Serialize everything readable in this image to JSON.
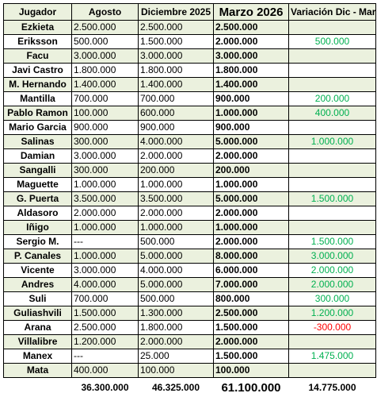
{
  "headers": {
    "player": "Jugador",
    "august": "Agosto",
    "december": "Diciembre 2025",
    "march": "Marzo 2026",
    "variation": "Variación Dic - Mar"
  },
  "rows": [
    {
      "player": "Ezkieta",
      "august": "2.500.000",
      "december": "2.500.000",
      "march": "2.500.000",
      "variation": "",
      "var_sign": ""
    },
    {
      "player": "Eriksson",
      "august": "500.000",
      "december": "1.500.000",
      "march": "2.000.000",
      "variation": "500.000",
      "var_sign": "pos"
    },
    {
      "player": "Facu",
      "august": "3.000.000",
      "december": "3.000.000",
      "march": "3.000.000",
      "variation": "",
      "var_sign": ""
    },
    {
      "player": "Javi Castro",
      "august": "1.800.000",
      "december": "1.800.000",
      "march": "1.800.000",
      "variation": "",
      "var_sign": ""
    },
    {
      "player": "M. Hernando",
      "august": "1.400.000",
      "december": "1.400.000",
      "march": "1.400.000",
      "variation": "",
      "var_sign": ""
    },
    {
      "player": "Mantilla",
      "august": "700.000",
      "december": "700.000",
      "march": "900.000",
      "variation": "200.000",
      "var_sign": "pos"
    },
    {
      "player": "Pablo Ramon",
      "august": "100.000",
      "december": "600.000",
      "march": "1.000.000",
      "variation": "400.000",
      "var_sign": "pos"
    },
    {
      "player": "Mario Garcia",
      "august": "900.000",
      "december": "900.000",
      "march": "900.000",
      "variation": "",
      "var_sign": ""
    },
    {
      "player": "Salinas",
      "august": "300.000",
      "december": "4.000.000",
      "march": "5.000.000",
      "variation": "1.000.000",
      "var_sign": "pos"
    },
    {
      "player": "Damian",
      "august": "3.000.000",
      "december": "2.000.000",
      "march": "2.000.000",
      "variation": "",
      "var_sign": ""
    },
    {
      "player": "Sangalli",
      "august": "300.000",
      "december": "200.000",
      "march": "200.000",
      "variation": "",
      "var_sign": ""
    },
    {
      "player": "Maguette",
      "august": "1.000.000",
      "december": "1.000.000",
      "march": "1.000.000",
      "variation": "",
      "var_sign": ""
    },
    {
      "player": "G. Puerta",
      "august": "3.500.000",
      "december": "3.500.000",
      "march": "5.000.000",
      "variation": "1.500.000",
      "var_sign": "pos"
    },
    {
      "player": "Aldasoro",
      "august": "2.000.000",
      "december": "2.000.000",
      "march": "2.000.000",
      "variation": "",
      "var_sign": ""
    },
    {
      "player": "Iñigo",
      "august": "1.000.000",
      "december": "1.000.000",
      "march": "1.000.000",
      "variation": "",
      "var_sign": ""
    },
    {
      "player": "Sergio M.",
      "august": "---",
      "december": "500.000",
      "march": "2.000.000",
      "variation": "1.500.000",
      "var_sign": "pos"
    },
    {
      "player": "P. Canales",
      "august": "1.000.000",
      "december": "5.000.000",
      "march": "8.000.000",
      "variation": "3.000.000",
      "var_sign": "pos"
    },
    {
      "player": "Vicente",
      "august": "3.000.000",
      "december": "4.000.000",
      "march": "6.000.000",
      "variation": "2.000.000",
      "var_sign": "pos"
    },
    {
      "player": "Andres",
      "august": "4.000.000",
      "december": "5.000.000",
      "march": "7.000.000",
      "variation": "2.000.000",
      "var_sign": "pos"
    },
    {
      "player": "Suli",
      "august": "700.000",
      "december": "500.000",
      "march": "800.000",
      "variation": "300.000",
      "var_sign": "pos"
    },
    {
      "player": "Guliashvili",
      "august": "1.500.000",
      "december": "1.300.000",
      "march": "2.500.000",
      "variation": "1.200.000",
      "var_sign": "pos"
    },
    {
      "player": "Arana",
      "august": "2.500.000",
      "december": "1.800.000",
      "march": "1.500.000",
      "variation": "-300.000",
      "var_sign": "neg"
    },
    {
      "player": "Villalibre",
      "august": "1.200.000",
      "december": "2.000.000",
      "march": "2.000.000",
      "variation": "",
      "var_sign": ""
    },
    {
      "player": "Manex",
      "august": "---",
      "december": "25.000",
      "march": "1.500.000",
      "variation": "1.475.000",
      "var_sign": "pos"
    },
    {
      "player": "Mata",
      "august": "400.000",
      "december": "100.000",
      "march": "100.000",
      "variation": "",
      "var_sign": ""
    }
  ],
  "totals": {
    "august": "36.300.000",
    "december": "46.325.000",
    "march": "61.100.000",
    "variation": "14.775.000"
  },
  "colors": {
    "band": "#ebf1de",
    "positive": "#00b050",
    "negative": "#ff0000"
  }
}
